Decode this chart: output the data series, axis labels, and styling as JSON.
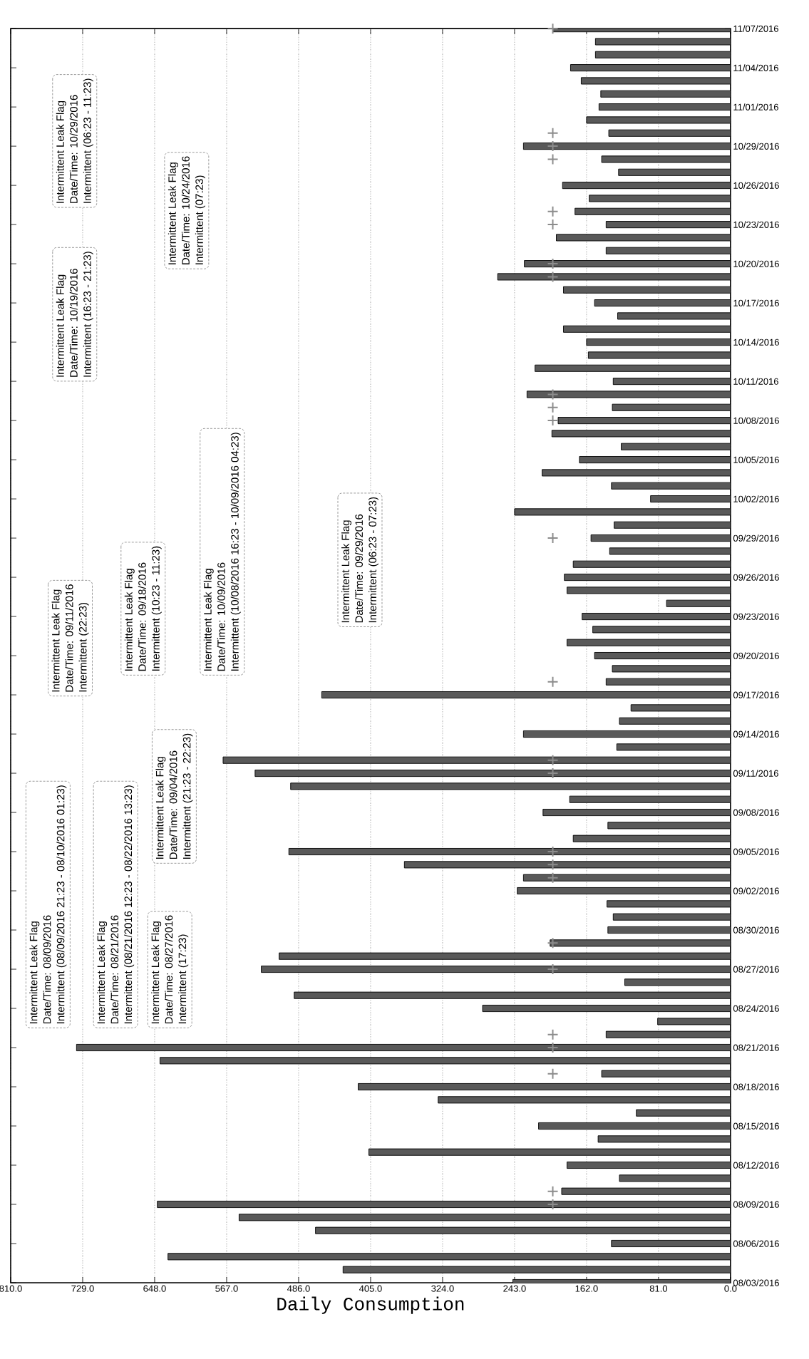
{
  "chart_data": {
    "type": "bar",
    "orientation": "horizontal",
    "xlabel": "Daily Consumption",
    "x": [
      "2016-08-03",
      "2016-08-04",
      "2016-08-05",
      "2016-08-06",
      "2016-08-07",
      "2016-08-08",
      "2016-08-09",
      "2016-08-10",
      "2016-08-11",
      "2016-08-12",
      "2016-08-13",
      "2016-08-14",
      "2016-08-15",
      "2016-08-16",
      "2016-08-17",
      "2016-08-18",
      "2016-08-19",
      "2016-08-20",
      "2016-08-21",
      "2016-08-22",
      "2016-08-23",
      "2016-08-24",
      "2016-08-25",
      "2016-08-26",
      "2016-08-27",
      "2016-08-28",
      "2016-08-29",
      "2016-08-30",
      "2016-08-31",
      "2016-09-01",
      "2016-09-02",
      "2016-09-03",
      "2016-09-04",
      "2016-09-05",
      "2016-09-06",
      "2016-09-07",
      "2016-09-08",
      "2016-09-09",
      "2016-09-10",
      "2016-09-11",
      "2016-09-12",
      "2016-09-13",
      "2016-09-14",
      "2016-09-15",
      "2016-09-16",
      "2016-09-17",
      "2016-09-18",
      "2016-09-19",
      "2016-09-20",
      "2016-09-21",
      "2016-09-22",
      "2016-09-23",
      "2016-09-24",
      "2016-09-25",
      "2016-09-26",
      "2016-09-27",
      "2016-09-28",
      "2016-09-29",
      "2016-09-30",
      "2016-10-01",
      "2016-10-02",
      "2016-10-03",
      "2016-10-04",
      "2016-10-05",
      "2016-10-06",
      "2016-10-07",
      "2016-10-08",
      "2016-10-09",
      "2016-10-10",
      "2016-10-11",
      "2016-10-12",
      "2016-10-13",
      "2016-10-14",
      "2016-10-15",
      "2016-10-16",
      "2016-10-17",
      "2016-10-18",
      "2016-10-19",
      "2016-10-20",
      "2016-10-21",
      "2016-10-22",
      "2016-10-23",
      "2016-10-24",
      "2016-10-25",
      "2016-10-26",
      "2016-10-27",
      "2016-10-28",
      "2016-10-29",
      "2016-10-30",
      "2016-10-31",
      "2016-11-01",
      "2016-11-02",
      "2016-11-03",
      "2016-11-04",
      "2016-11-05",
      "2016-11-06",
      "2016-11-07"
    ],
    "series": [
      {
        "color": "#595959",
        "values": [
          245,
          436,
          633,
          134,
          467,
          553,
          645,
          190,
          125,
          184,
          407,
          149,
          216,
          106,
          329,
          419,
          145,
          642,
          736,
          140,
          82,
          279,
          491,
          119,
          528,
          508,
          203,
          138,
          132,
          139,
          240,
          233,
          367,
          497,
          177,
          138,
          211,
          181,
          495,
          535,
          571,
          128,
          233,
          125,
          112,
          460,
          140,
          133,
          153,
          184,
          155,
          167,
          72,
          184,
          187,
          177,
          136,
          157,
          131,
          243,
          90,
          134,
          212,
          170,
          123,
          201,
          194,
          133,
          229,
          132,
          220,
          160,
          162,
          188,
          127,
          153,
          188,
          262,
          232,
          140,
          196,
          140,
          175,
          159,
          189,
          126,
          145,
          233,
          137,
          162,
          148,
          146,
          168,
          180,
          152,
          152,
          200
        ]
      },
      {
        "type": "scatter",
        "marker": "cross",
        "color": "#8c8c8c",
        "x": [
          "2016-08-09",
          "2016-08-10",
          "2016-08-19",
          "2016-08-21",
          "2016-08-22",
          "2016-08-27",
          "2016-08-29",
          "2016-09-03",
          "2016-09-04",
          "2016-09-05",
          "2016-09-11",
          "2016-09-12",
          "2016-09-18",
          "2016-09-29",
          "2016-10-08",
          "2016-10-09",
          "2016-10-10",
          "2016-10-19",
          "2016-10-20",
          "2016-10-23",
          "2016-10-24",
          "2016-10-28",
          "2016-10-29",
          "2016-10-30",
          "2016-11-07"
        ],
        "values": [
          200,
          200,
          200,
          200,
          200,
          200,
          200,
          200,
          200,
          200,
          200,
          200,
          200,
          200,
          200,
          200,
          200,
          200,
          200,
          200,
          200,
          200,
          200,
          200,
          200
        ]
      }
    ],
    "ylim": [
      "2016-08-03",
      "2016-11-07"
    ],
    "yticks": [
      {
        "value": "2016-08-03",
        "label": "08/03/2016"
      },
      {
        "value": "2016-08-06",
        "label": "08/06/2016"
      },
      {
        "value": "2016-08-09",
        "label": "08/09/2016"
      },
      {
        "value": "2016-08-12",
        "label": "08/12/2016"
      },
      {
        "value": "2016-08-15",
        "label": "08/15/2016"
      },
      {
        "value": "2016-08-18",
        "label": "08/18/2016"
      },
      {
        "value": "2016-08-21",
        "label": "08/21/2016"
      },
      {
        "value": "2016-08-24",
        "label": "08/24/2016"
      },
      {
        "value": "2016-08-27",
        "label": "08/27/2016"
      },
      {
        "value": "2016-08-30",
        "label": "08/30/2016"
      },
      {
        "value": "2016-09-02",
        "label": "09/02/2016"
      },
      {
        "value": "2016-09-05",
        "label": "09/05/2016"
      },
      {
        "value": "2016-09-08",
        "label": "09/08/2016"
      },
      {
        "value": "2016-09-11",
        "label": "09/11/2016"
      },
      {
        "value": "2016-09-14",
        "label": "09/14/2016"
      },
      {
        "value": "2016-09-17",
        "label": "09/17/2016"
      },
      {
        "value": "2016-09-20",
        "label": "09/20/2016"
      },
      {
        "value": "2016-09-23",
        "label": "09/23/2016"
      },
      {
        "value": "2016-09-26",
        "label": "09/26/2016"
      },
      {
        "value": "2016-09-29",
        "label": "09/29/2016"
      },
      {
        "value": "2016-10-02",
        "label": "10/02/2016"
      },
      {
        "value": "2016-10-05",
        "label": "10/05/2016"
      },
      {
        "value": "2016-10-08",
        "label": "10/08/2016"
      },
      {
        "value": "2016-10-11",
        "label": "10/11/2016"
      },
      {
        "value": "2016-10-14",
        "label": "10/14/2016"
      },
      {
        "value": "2016-10-17",
        "label": "10/17/2016"
      },
      {
        "value": "2016-10-20",
        "label": "10/20/2016"
      },
      {
        "value": "2016-10-23",
        "label": "10/23/2016"
      },
      {
        "value": "2016-10-26",
        "label": "10/26/2016"
      },
      {
        "value": "2016-10-29",
        "label": "10/29/2016"
      },
      {
        "value": "2016-11-01",
        "label": "11/01/2016"
      },
      {
        "value": "2016-11-04",
        "label": "11/04/2016"
      },
      {
        "value": "2016-11-07",
        "label": "11/07/2016"
      }
    ],
    "xlim": [
      810,
      0
    ],
    "xticks": [
      {
        "value": 0,
        "label": "0.0"
      },
      {
        "value": 81,
        "label": "81.0"
      },
      {
        "value": 162,
        "label": "162.0"
      },
      {
        "value": 243,
        "label": "243.0"
      },
      {
        "value": 324,
        "label": "324.0"
      },
      {
        "value": 405,
        "label": "405.0"
      },
      {
        "value": 486,
        "label": "486.0"
      },
      {
        "value": 567,
        "label": "567.0"
      },
      {
        "value": 648,
        "label": "648.0"
      },
      {
        "value": 729,
        "label": "729.0"
      },
      {
        "value": 810,
        "label": "810.0"
      }
    ],
    "grid": "x",
    "annotations": [
      "Intermittent Leak Flag",
      "Date/Time: 08/09/2016",
      "Intermittent (08/09/2016 21:23 - 08/10/2016 01:23)",
      "Intermittent Leak Flag",
      "Date/Time: 08/21/2016",
      "Intermittent (08/21/2016 12:23 - 08/22/2016 13:23)",
      "Intermittent Leak Flag",
      "Date/Time: 08/27/2016",
      "Intermittent (17:23)",
      "Intermittent Leak Flag",
      "Date/Time: 09/04/2016",
      "Intermittent (21:23 - 22:23)",
      "Intermittent Leak Flag",
      "Date/Time: 09/11/2016",
      "Intermittent (22:23)",
      "Intermittent Leak Flag",
      "Date/Time: 09/18/2016",
      "Intermittent (10:23 - 11:23)",
      "Intermittent Leak Flag",
      "Date/Time: 10/09/2016",
      "Intermittent (10/08/2016 16:23 - 10/09/2016 04:23)",
      "Intermittent Leak Flag",
      "Date/Time: 09/29/2016",
      "Intermittent (06:23 - 07:23)",
      "Intermittent Leak Flag",
      "Date/Time: 10/19/2016",
      "Intermittent (16:23 - 21:23)",
      "Intermittent Leak Flag",
      "Date/Time: 10/29/2016",
      "Intermittent (06:23 - 11:23)",
      "Intermittent Leak Flag",
      "Date/Time: 10/24/2016",
      "Intermittent (07:23)"
    ]
  }
}
